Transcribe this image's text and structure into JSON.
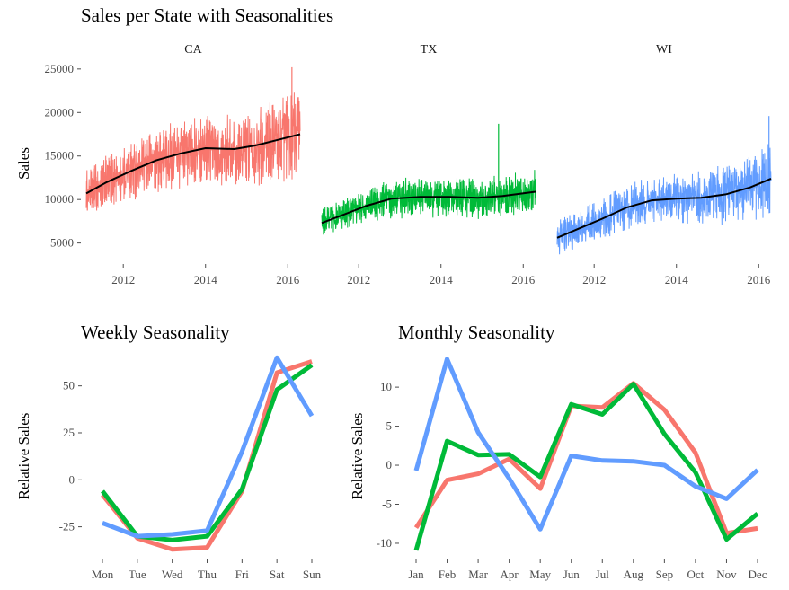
{
  "colors": {
    "CA": "#F8766D",
    "TX": "#00BA38",
    "WI": "#619CFF",
    "trend": "#000000",
    "tick": "#4d4d4d"
  },
  "chart_data": [
    {
      "type": "line",
      "title": "Sales per State with Seasonalities",
      "ylabel": "Sales",
      "xlabel": "",
      "facets": [
        "CA",
        "TX",
        "WI"
      ],
      "x_ticks": [
        "2012",
        "2014",
        "2016"
      ],
      "y_ticks": [
        "5000",
        "10000",
        "15000",
        "20000",
        "25000"
      ],
      "xlim": [
        2011.1,
        2016.3
      ],
      "ylim": [
        3000,
        25500
      ],
      "series": [
        {
          "name": "CA",
          "base": [
            [
              2011.1,
              10700
            ],
            [
              2011.6,
              12000
            ],
            [
              2012.2,
              13300
            ],
            [
              2012.8,
              14500
            ],
            [
              2013.4,
              15300
            ],
            [
              2014.0,
              15900
            ],
            [
              2014.7,
              15800
            ],
            [
              2015.2,
              16200
            ],
            [
              2015.8,
              16900
            ],
            [
              2016.3,
              17500
            ]
          ],
          "amplitude": [
            [
              2011.1,
              2800
            ],
            [
              2013.0,
              3800
            ],
            [
              2014.5,
              4100
            ],
            [
              2016.3,
              5200
            ]
          ],
          "trend": [
            [
              2011.1,
              10700
            ],
            [
              2011.6,
              12000
            ],
            [
              2012.2,
              13300
            ],
            [
              2012.8,
              14500
            ],
            [
              2013.4,
              15300
            ],
            [
              2014.0,
              15900
            ],
            [
              2014.7,
              15800
            ],
            [
              2015.2,
              16200
            ],
            [
              2015.8,
              16900
            ],
            [
              2016.3,
              17500
            ]
          ]
        },
        {
          "name": "TX",
          "base": [
            [
              2011.1,
              7300
            ],
            [
              2011.6,
              8200
            ],
            [
              2012.2,
              9300
            ],
            [
              2012.8,
              10100
            ],
            [
              2013.5,
              10300
            ],
            [
              2014.2,
              10300
            ],
            [
              2014.9,
              10200
            ],
            [
              2015.5,
              10400
            ],
            [
              2016.3,
              10900
            ]
          ],
          "amplitude": [
            [
              2011.1,
              1700
            ],
            [
              2013.0,
              2300
            ],
            [
              2014.5,
              2300
            ],
            [
              2016.3,
              2600
            ]
          ],
          "trend": [
            [
              2011.1,
              7300
            ],
            [
              2011.6,
              8200
            ],
            [
              2012.2,
              9300
            ],
            [
              2012.8,
              10100
            ],
            [
              2013.5,
              10300
            ],
            [
              2014.2,
              10300
            ],
            [
              2014.9,
              10200
            ],
            [
              2015.5,
              10400
            ],
            [
              2016.3,
              10900
            ]
          ]
        },
        {
          "name": "WI",
          "base": [
            [
              2011.1,
              5600
            ],
            [
              2011.6,
              6600
            ],
            [
              2012.2,
              7800
            ],
            [
              2012.8,
              9100
            ],
            [
              2013.4,
              9900
            ],
            [
              2014.0,
              10100
            ],
            [
              2014.6,
              10200
            ],
            [
              2015.2,
              10600
            ],
            [
              2015.8,
              11400
            ],
            [
              2016.3,
              12400
            ]
          ],
          "amplitude": [
            [
              2011.1,
              2000
            ],
            [
              2013.0,
              2600
            ],
            [
              2014.5,
              2900
            ],
            [
              2016.3,
              4300
            ]
          ],
          "trend": [
            [
              2011.1,
              5600
            ],
            [
              2011.6,
              6600
            ],
            [
              2012.2,
              7800
            ],
            [
              2012.8,
              9100
            ],
            [
              2013.4,
              9900
            ],
            [
              2014.0,
              10100
            ],
            [
              2014.6,
              10200
            ],
            [
              2015.2,
              10600
            ],
            [
              2015.8,
              11400
            ],
            [
              2016.3,
              12400
            ]
          ]
        }
      ],
      "spikes": [
        {
          "series": "TX",
          "x": 2015.4,
          "y": 18700
        },
        {
          "series": "CA",
          "x": 2016.1,
          "y": 25200
        },
        {
          "series": "WI",
          "x": 2016.25,
          "y": 19600
        }
      ]
    },
    {
      "type": "line",
      "title": "Weekly Seasonality",
      "ylabel": "Relative Sales",
      "xlabel": "",
      "categories": [
        "Mon",
        "Tue",
        "Wed",
        "Thu",
        "Fri",
        "Sat",
        "Sun"
      ],
      "y_ticks": [
        "-25",
        "0",
        "25",
        "50"
      ],
      "ylim": [
        -40,
        68
      ],
      "series": [
        {
          "name": "CA",
          "values": [
            -8,
            -31,
            -37,
            -36,
            -6,
            57,
            63
          ]
        },
        {
          "name": "TX",
          "values": [
            -6,
            -30,
            -32,
            -30,
            -5,
            48,
            61
          ]
        },
        {
          "name": "WI",
          "values": [
            -23,
            -30,
            -29,
            -27,
            15,
            65,
            34
          ]
        }
      ]
    },
    {
      "type": "line",
      "title": "Monthly Seasonality",
      "ylabel": "Relative Sales",
      "xlabel": "",
      "categories": [
        "Jan",
        "Feb",
        "Mar",
        "Apr",
        "May",
        "Jun",
        "Jul",
        "Aug",
        "Sep",
        "Oct",
        "Nov",
        "Dec"
      ],
      "y_ticks": [
        "-10",
        "-5",
        "0",
        "5",
        "10"
      ],
      "ylim": [
        -11.5,
        14.5
      ],
      "series": [
        {
          "name": "CA",
          "values": [
            -8.0,
            -1.9,
            -1.1,
            0.8,
            -3.0,
            7.6,
            7.4,
            10.5,
            7.1,
            1.6,
            -8.7,
            -8.1
          ]
        },
        {
          "name": "TX",
          "values": [
            -10.9,
            3.1,
            1.3,
            1.4,
            -1.5,
            7.8,
            6.5,
            10.4,
            4.0,
            -0.9,
            -9.5,
            -6.2
          ]
        },
        {
          "name": "WI",
          "values": [
            -0.7,
            13.6,
            4.2,
            -1.7,
            -8.2,
            1.2,
            0.6,
            0.5,
            0.0,
            -2.7,
            -4.3,
            -0.6
          ]
        }
      ]
    }
  ]
}
